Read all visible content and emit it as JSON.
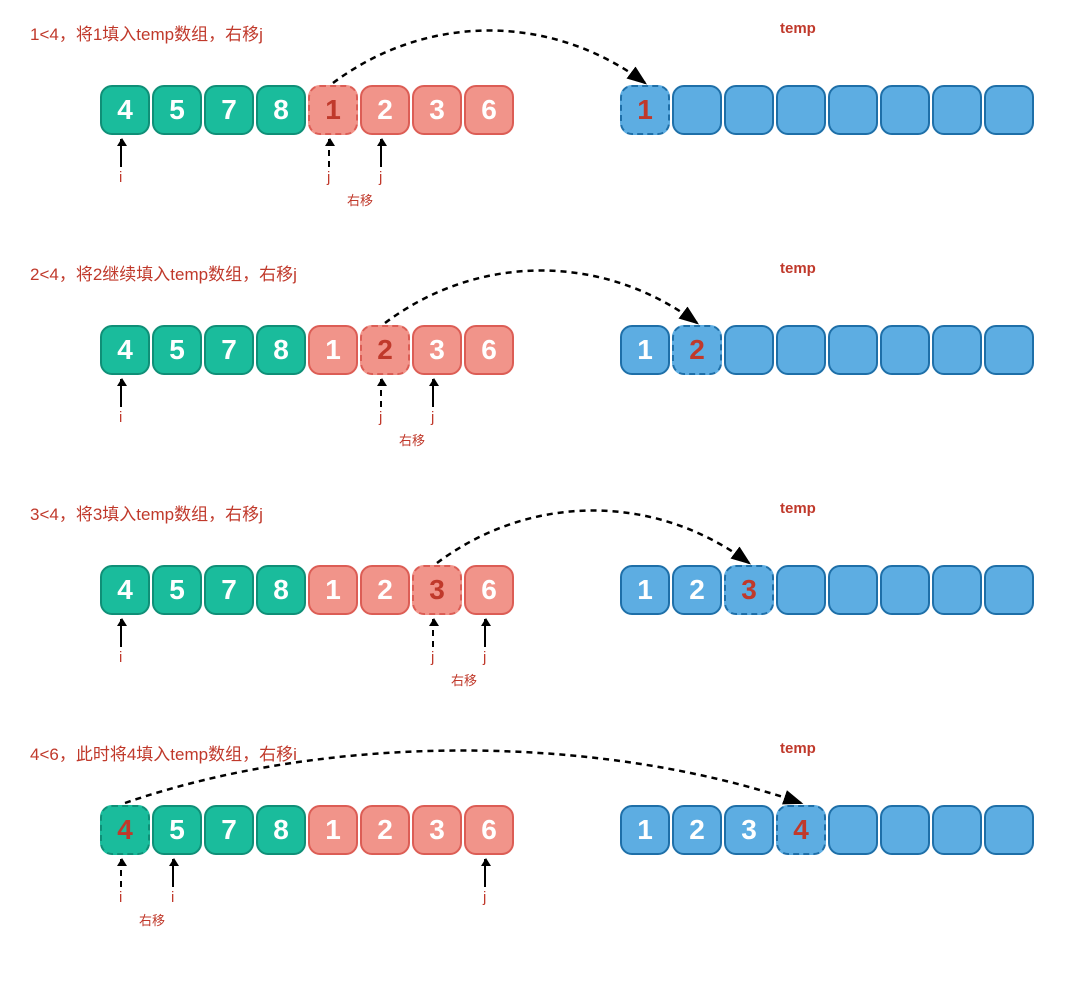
{
  "colors": {
    "teal": "#1abc9c",
    "teal_border": "#0f8f77",
    "pink": "#f1948a",
    "pink_border": "#dc5d55",
    "blue": "#5dade2",
    "blue_border": "#1e6fa8",
    "red_text": "#c0392b",
    "white": "#ffffff",
    "black": "#000000"
  },
  "cell": {
    "w": 50,
    "h": 50,
    "radius": 12,
    "gap": 2,
    "fontsize": 28
  },
  "steps": [
    {
      "caption": "1<4，将1填入temp数组，右移j",
      "temp_label": "temp",
      "source": [
        {
          "v": "4",
          "style": "teal"
        },
        {
          "v": "5",
          "style": "teal"
        },
        {
          "v": "7",
          "style": "teal"
        },
        {
          "v": "8",
          "style": "teal"
        },
        {
          "v": "1",
          "style": "pink",
          "hl": true
        },
        {
          "v": "2",
          "style": "pink"
        },
        {
          "v": "3",
          "style": "pink"
        },
        {
          "v": "6",
          "style": "pink"
        }
      ],
      "temp": [
        {
          "v": "1",
          "style": "blue",
          "hl": true
        },
        {
          "v": "",
          "style": "blue"
        },
        {
          "v": "",
          "style": "blue"
        },
        {
          "v": "",
          "style": "blue"
        },
        {
          "v": "",
          "style": "blue"
        },
        {
          "v": "",
          "style": "blue"
        },
        {
          "v": "",
          "style": "blue"
        },
        {
          "v": "",
          "style": "blue"
        }
      ],
      "pointers": [
        {
          "idx": 0,
          "label": "i",
          "dashed": false
        },
        {
          "idx": 4,
          "label": "j",
          "dashed": true
        },
        {
          "idx": 5,
          "label": "j",
          "dashed": false
        }
      ],
      "sublabel": {
        "text": "右移",
        "between": [
          4,
          5
        ]
      },
      "arc": {
        "from": 4,
        "which": "source"
      }
    },
    {
      "caption": "2<4，将2继续填入temp数组，右移j",
      "temp_label": "temp",
      "source": [
        {
          "v": "4",
          "style": "teal"
        },
        {
          "v": "5",
          "style": "teal"
        },
        {
          "v": "7",
          "style": "teal"
        },
        {
          "v": "8",
          "style": "teal"
        },
        {
          "v": "1",
          "style": "pink"
        },
        {
          "v": "2",
          "style": "pink",
          "hl": true
        },
        {
          "v": "3",
          "style": "pink"
        },
        {
          "v": "6",
          "style": "pink"
        }
      ],
      "temp": [
        {
          "v": "1",
          "style": "blue"
        },
        {
          "v": "2",
          "style": "blue",
          "hl": true
        },
        {
          "v": "",
          "style": "blue"
        },
        {
          "v": "",
          "style": "blue"
        },
        {
          "v": "",
          "style": "blue"
        },
        {
          "v": "",
          "style": "blue"
        },
        {
          "v": "",
          "style": "blue"
        },
        {
          "v": "",
          "style": "blue"
        }
      ],
      "pointers": [
        {
          "idx": 0,
          "label": "i",
          "dashed": false
        },
        {
          "idx": 5,
          "label": "j",
          "dashed": true
        },
        {
          "idx": 6,
          "label": "j",
          "dashed": false
        }
      ],
      "sublabel": {
        "text": "右移",
        "between": [
          5,
          6
        ]
      },
      "arc": {
        "from": 5,
        "which": "source"
      }
    },
    {
      "caption": "3<4，将3填入temp数组，右移j",
      "temp_label": "temp",
      "source": [
        {
          "v": "4",
          "style": "teal"
        },
        {
          "v": "5",
          "style": "teal"
        },
        {
          "v": "7",
          "style": "teal"
        },
        {
          "v": "8",
          "style": "teal"
        },
        {
          "v": "1",
          "style": "pink"
        },
        {
          "v": "2",
          "style": "pink"
        },
        {
          "v": "3",
          "style": "pink",
          "hl": true
        },
        {
          "v": "6",
          "style": "pink"
        }
      ],
      "temp": [
        {
          "v": "1",
          "style": "blue"
        },
        {
          "v": "2",
          "style": "blue"
        },
        {
          "v": "3",
          "style": "blue",
          "hl": true
        },
        {
          "v": "",
          "style": "blue"
        },
        {
          "v": "",
          "style": "blue"
        },
        {
          "v": "",
          "style": "blue"
        },
        {
          "v": "",
          "style": "blue"
        },
        {
          "v": "",
          "style": "blue"
        }
      ],
      "pointers": [
        {
          "idx": 0,
          "label": "i",
          "dashed": false
        },
        {
          "idx": 6,
          "label": "j",
          "dashed": true
        },
        {
          "idx": 7,
          "label": "j",
          "dashed": false
        }
      ],
      "sublabel": {
        "text": "右移",
        "between": [
          6,
          7
        ]
      },
      "arc": {
        "from": 6,
        "which": "source"
      }
    },
    {
      "caption": "4<6，此时将4填入temp数组，右移i",
      "temp_label": "temp",
      "source": [
        {
          "v": "4",
          "style": "teal",
          "hl": true
        },
        {
          "v": "5",
          "style": "teal"
        },
        {
          "v": "7",
          "style": "teal"
        },
        {
          "v": "8",
          "style": "teal"
        },
        {
          "v": "1",
          "style": "pink"
        },
        {
          "v": "2",
          "style": "pink"
        },
        {
          "v": "3",
          "style": "pink"
        },
        {
          "v": "6",
          "style": "pink"
        }
      ],
      "temp": [
        {
          "v": "1",
          "style": "blue"
        },
        {
          "v": "2",
          "style": "blue"
        },
        {
          "v": "3",
          "style": "blue"
        },
        {
          "v": "4",
          "style": "blue",
          "hl": true
        },
        {
          "v": "",
          "style": "blue"
        },
        {
          "v": "",
          "style": "blue"
        },
        {
          "v": "",
          "style": "blue"
        },
        {
          "v": "",
          "style": "blue"
        }
      ],
      "pointers": [
        {
          "idx": 0,
          "label": "i",
          "dashed": true
        },
        {
          "idx": 1,
          "label": "i",
          "dashed": false
        },
        {
          "idx": 7,
          "label": "j",
          "dashed": false
        }
      ],
      "sublabel": {
        "text": "右移",
        "between": [
          0,
          1
        ]
      },
      "arc": {
        "from": 0,
        "which": "source"
      }
    }
  ]
}
